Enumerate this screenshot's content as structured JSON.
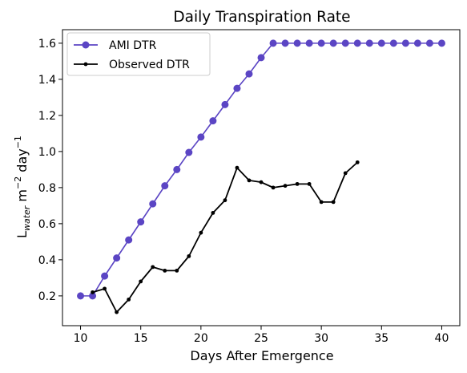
{
  "chart_data": {
    "type": "line",
    "title": "Daily Transpiration Rate",
    "xlabel": "Days After Emergence",
    "ylabel": {
      "base": "L",
      "sub": "water",
      "mid": " m",
      "sup1": "−2",
      "mid2": " day",
      "sup2": "−1"
    },
    "xlim": [
      8.5,
      41.5
    ],
    "ylim": [
      0.035,
      1.675
    ],
    "xticks": [
      10,
      15,
      20,
      25,
      30,
      35,
      40
    ],
    "yticks": [
      0.2,
      0.4,
      0.6,
      0.8,
      1.0,
      1.2,
      1.4,
      1.6
    ],
    "ytick_labels": [
      "0.2",
      "0.4",
      "0.6",
      "0.8",
      "1.0",
      "1.2",
      "1.4",
      "1.6"
    ],
    "grid": false,
    "legend_position": "top-left",
    "series": [
      {
        "name": "AMI DTR",
        "color": "#5b45c4",
        "marker": "large-circle",
        "x": [
          10,
          11,
          12,
          13,
          14,
          15,
          16,
          17,
          18,
          19,
          20,
          21,
          22,
          23,
          24,
          25,
          26,
          27,
          28,
          29,
          30,
          31,
          32,
          33,
          34,
          35,
          36,
          37,
          38,
          39,
          40
        ],
        "y": [
          0.2,
          0.2,
          0.31,
          0.41,
          0.51,
          0.61,
          0.71,
          0.81,
          0.9,
          0.995,
          1.08,
          1.17,
          1.26,
          1.35,
          1.43,
          1.52,
          1.6,
          1.6,
          1.6,
          1.6,
          1.6,
          1.6,
          1.6,
          1.6,
          1.6,
          1.6,
          1.6,
          1.6,
          1.6,
          1.6,
          1.6
        ]
      },
      {
        "name": "Observed DTR",
        "color": "#000000",
        "marker": "small-dot",
        "x": [
          11,
          12,
          13,
          14,
          15,
          16,
          17,
          18,
          19,
          20,
          21,
          22,
          23,
          24,
          25,
          26,
          27,
          28,
          29,
          30,
          31,
          32,
          33
        ],
        "y": [
          0.22,
          0.24,
          0.11,
          0.18,
          0.28,
          0.36,
          0.34,
          0.34,
          0.42,
          0.55,
          0.66,
          0.73,
          0.91,
          0.84,
          0.83,
          0.8,
          0.81,
          0.82,
          0.82,
          0.72,
          0.72,
          0.88,
          0.94
        ]
      }
    ]
  }
}
